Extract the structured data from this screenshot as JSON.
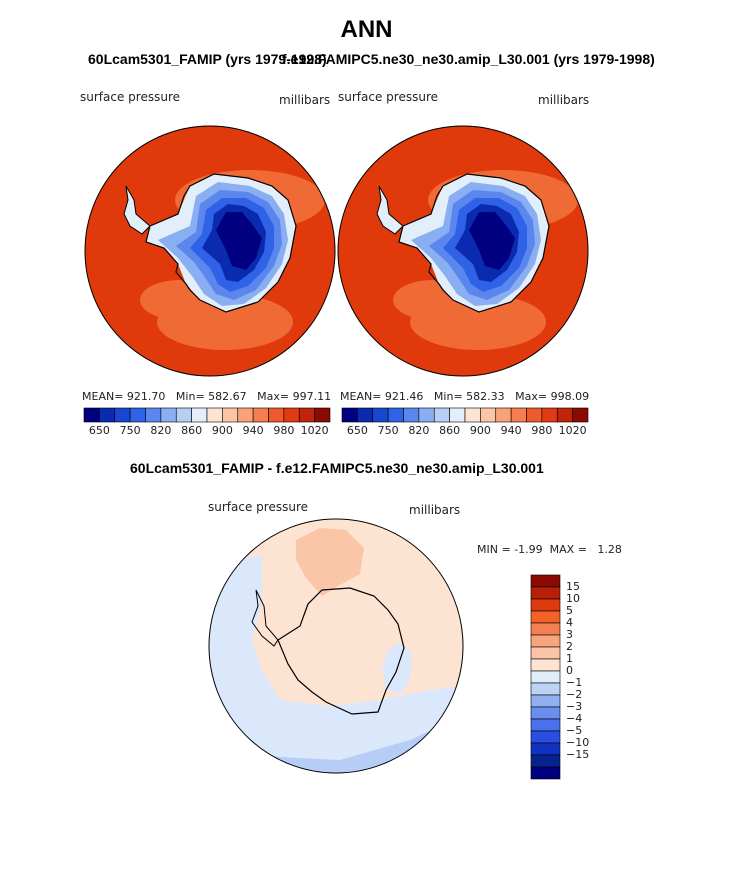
{
  "figure": {
    "title": "ANN",
    "variable": "surface pressure",
    "units": "millibars"
  },
  "panels": [
    {
      "case_title": "60Lcam5301_FAMIP (yrs 1979-1998)",
      "variable": "surface pressure",
      "units": "millibars",
      "stats": {
        "mean_label": "MEAN=",
        "mean": "921.70",
        "min_label": "Min=",
        "min": "582.67",
        "max_label": "Max=",
        "max": "997.11"
      }
    },
    {
      "case_title": "f.e12.FAMIPC5.ne30_ne30.amip_L30.001 (yrs 1979-1998)",
      "variable": "surface pressure",
      "units": "millibars",
      "stats": {
        "mean_label": "MEAN=",
        "mean": "921.46",
        "min_label": "Min=",
        "min": "582.33",
        "max_label": "Max=",
        "max": "998.09"
      }
    }
  ],
  "abs_colorbar": {
    "colors": [
      "#000080",
      "#0a2bb0",
      "#1b46cf",
      "#2f62e6",
      "#5a86ee",
      "#8aaef2",
      "#b8cff5",
      "#e3eefb",
      "#fde3d2",
      "#fbc5a6",
      "#f9a27a",
      "#f57e50",
      "#ef5a2c",
      "#e23a13",
      "#c0240a",
      "#8b0a04"
    ],
    "tick_labels": [
      "650",
      "750",
      "820",
      "860",
      "900",
      "940",
      "980",
      "1020"
    ]
  },
  "diff": {
    "case_title": "60Lcam5301_FAMIP - f.e12.FAMIPC5.ne30_ne30.amip_L30.001",
    "variable": "surface pressure",
    "units": "millibars",
    "min_label": "MIN =",
    "min": "-1.99",
    "max_label": "MAX =",
    "max": "1.28",
    "colorbar_colors": [
      "#8b0a04",
      "#b81f07",
      "#de3a10",
      "#f4622a",
      "#f47f52",
      "#f8a47f",
      "#fbc4a8",
      "#fde3d2",
      "#e1ecf9",
      "#bcd3f6",
      "#8fb0f1",
      "#6a8eee",
      "#4a70ec",
      "#2a4ee3",
      "#1232c2",
      "#08238f",
      "#000080"
    ],
    "colorbar_labels": [
      "15",
      "10",
      "5",
      "4",
      "3",
      "2",
      "1",
      "0",
      "−1",
      "−2",
      "−3",
      "−4",
      "−5",
      "−10",
      "−15"
    ]
  },
  "colors": {
    "ocean_high": "#e03a0c",
    "ocean_mid": "#f06a35",
    "diff_positive": "#fde3d2",
    "diff_positive2": "#fbc6a8",
    "diff_negative": "#dbe8fb",
    "diff_negative2": "#b6cdf6"
  }
}
